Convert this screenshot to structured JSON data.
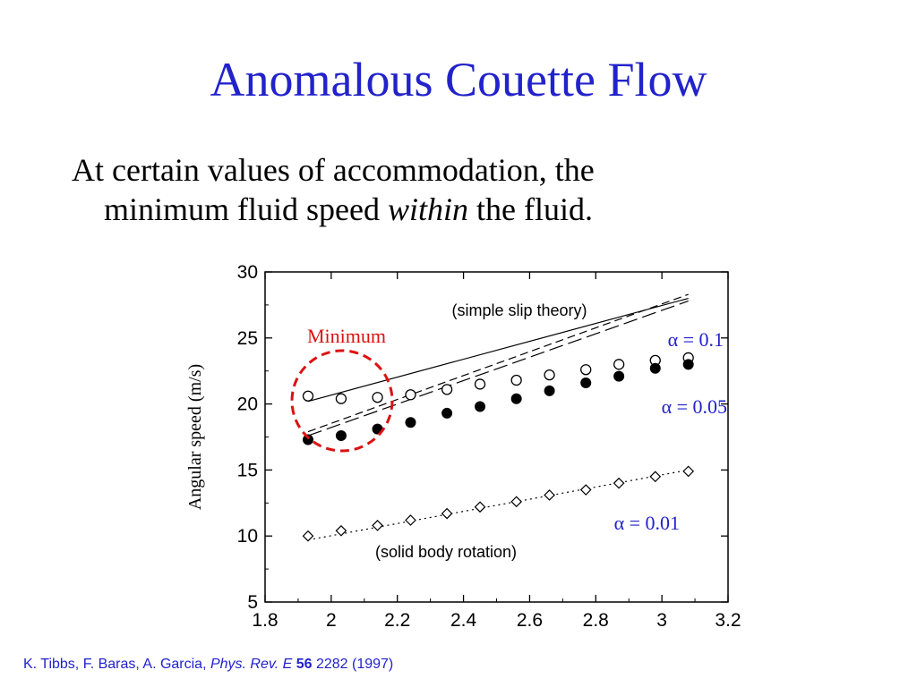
{
  "slide": {
    "title": "Anomalous Couette Flow",
    "bullet_line1": "At certain values of accommodation, the",
    "bullet_line2_pre": "minimum fluid speed ",
    "bullet_line2_em": "within",
    "bullet_line2_post": " the fluid.",
    "citation": {
      "authors": "K. Tibbs, F. Baras, A. Garcia, ",
      "journal": "Phys. Rev. E",
      "volume": "56",
      "pages_year": " 2282 (1997)"
    }
  },
  "colors": {
    "title": "#2222cc",
    "annotation_blue": "#2222cc",
    "minimum_red": "#dd1111",
    "axes": "#000000"
  },
  "chart_data": {
    "type": "scatter",
    "ylabel": "Angular speed (m/s)",
    "xlabel": "",
    "xlim": [
      1.8,
      3.2
    ],
    "ylim": [
      5,
      30
    ],
    "xticks": [
      1.8,
      2,
      2.2,
      2.4,
      2.6,
      2.8,
      3,
      3.2
    ],
    "xtick_labels": [
      "1.8",
      "2",
      "2.2",
      "2.4",
      "2.6",
      "2.8",
      "3",
      "3.2"
    ],
    "yticks": [
      5,
      10,
      15,
      20,
      25,
      30
    ],
    "ytick_labels": [
      "5",
      "10",
      "15",
      "20",
      "25",
      "30"
    ],
    "series": [
      {
        "name": "α = 0.1",
        "marker": "open-circle",
        "x": [
          1.93,
          2.03,
          2.14,
          2.24,
          2.35,
          2.45,
          2.56,
          2.66,
          2.77,
          2.87,
          2.98,
          3.08
        ],
        "y": [
          20.6,
          20.4,
          20.5,
          20.7,
          21.1,
          21.5,
          21.8,
          22.2,
          22.6,
          23.0,
          23.3,
          23.5
        ]
      },
      {
        "name": "α = 0.05",
        "marker": "filled-circle",
        "x": [
          1.93,
          2.03,
          2.14,
          2.24,
          2.35,
          2.45,
          2.56,
          2.66,
          2.77,
          2.87,
          2.98,
          3.08
        ],
        "y": [
          17.3,
          17.6,
          18.1,
          18.6,
          19.3,
          19.8,
          20.4,
          21.0,
          21.6,
          22.1,
          22.7,
          23.0
        ]
      },
      {
        "name": "α = 0.01",
        "marker": "open-diamond",
        "x": [
          1.93,
          2.03,
          2.14,
          2.24,
          2.35,
          2.45,
          2.56,
          2.66,
          2.77,
          2.87,
          2.98,
          3.08
        ],
        "y": [
          10.0,
          10.4,
          10.8,
          11.2,
          11.7,
          12.2,
          12.6,
          13.1,
          13.5,
          14.0,
          14.5,
          14.9
        ]
      }
    ],
    "theory_lines": [
      {
        "style": "solid",
        "x": [
          1.93,
          3.08
        ],
        "y": [
          20.2,
          28.0
        ]
      },
      {
        "style": "long-dash",
        "x": [
          1.93,
          3.08
        ],
        "y": [
          17.6,
          27.8
        ]
      },
      {
        "style": "dash",
        "x": [
          1.93,
          3.08
        ],
        "y": [
          17.9,
          28.3
        ]
      },
      {
        "style": "dotted",
        "x": [
          1.93,
          3.08
        ],
        "y": [
          9.7,
          15.0
        ]
      }
    ],
    "annotations": {
      "simple_slip": "(simple slip theory)",
      "solid_body": "(solid body rotation)",
      "minimum": "Minimum",
      "alpha_01": "α = 0.1",
      "alpha_005": "α = 0.05",
      "alpha_001": "α = 0.01"
    }
  }
}
